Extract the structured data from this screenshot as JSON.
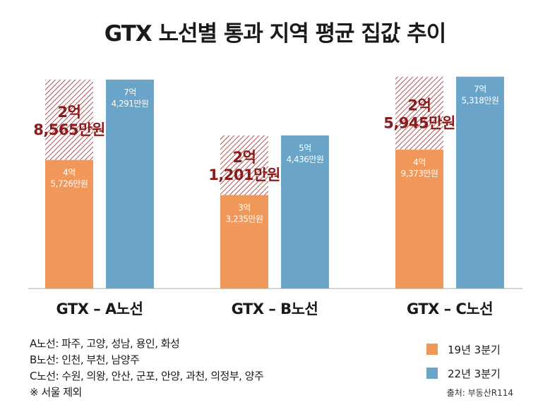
{
  "title": "GTX 노선별 통과 지역 평균 집값 추이",
  "colors": {
    "series_2019": "#f0975a",
    "series_2022": "#6aa4c8",
    "increase_text": "#8b1a1a",
    "hatch": "#8b1a1a"
  },
  "chart_data": {
    "type": "bar",
    "title": "GTX 노선별 통과 지역 평균 집값 추이",
    "unit": "만원",
    "categories": [
      "GTX – A노선",
      "GTX – B노선",
      "GTX – C노선"
    ],
    "series": [
      {
        "name": "19년 3분기",
        "values": [
          45726,
          33235,
          49373
        ],
        "labels": [
          [
            "4억",
            "5,726만원"
          ],
          [
            "3억",
            "3,235만원"
          ],
          [
            "4억",
            "9,373만원"
          ]
        ]
      },
      {
        "name": "22년 3분기",
        "values": [
          74291,
          54436,
          75318
        ],
        "labels": [
          [
            "7억",
            "4,291만원"
          ],
          [
            "5억",
            "4,436만원"
          ],
          [
            "7억",
            "5,318만원"
          ]
        ]
      }
    ],
    "increase": {
      "values": [
        28565,
        21201,
        25945
      ],
      "labels": [
        [
          "2억",
          "8,565만원"
        ],
        [
          "2억",
          "1,201만원"
        ],
        [
          "2억",
          "5,945만원"
        ]
      ]
    },
    "ylim": [
      0,
      76000
    ],
    "grid": false,
    "legend_position": "bottom-right"
  },
  "notes": [
    "A노선: 파주, 고양, 성남, 용인, 화성",
    "B노선: 인천, 부천, 남양주",
    "C노선: 수원, 의왕, 안산, 군포, 안양, 과천, 의정부, 양주",
    "※ 서울 제외"
  ],
  "legend": [
    {
      "label": "19년 3분기",
      "color": "#f0975a"
    },
    {
      "label": "22년 3분기",
      "color": "#6aa4c8"
    }
  ],
  "source": "출처: 부동산R114"
}
